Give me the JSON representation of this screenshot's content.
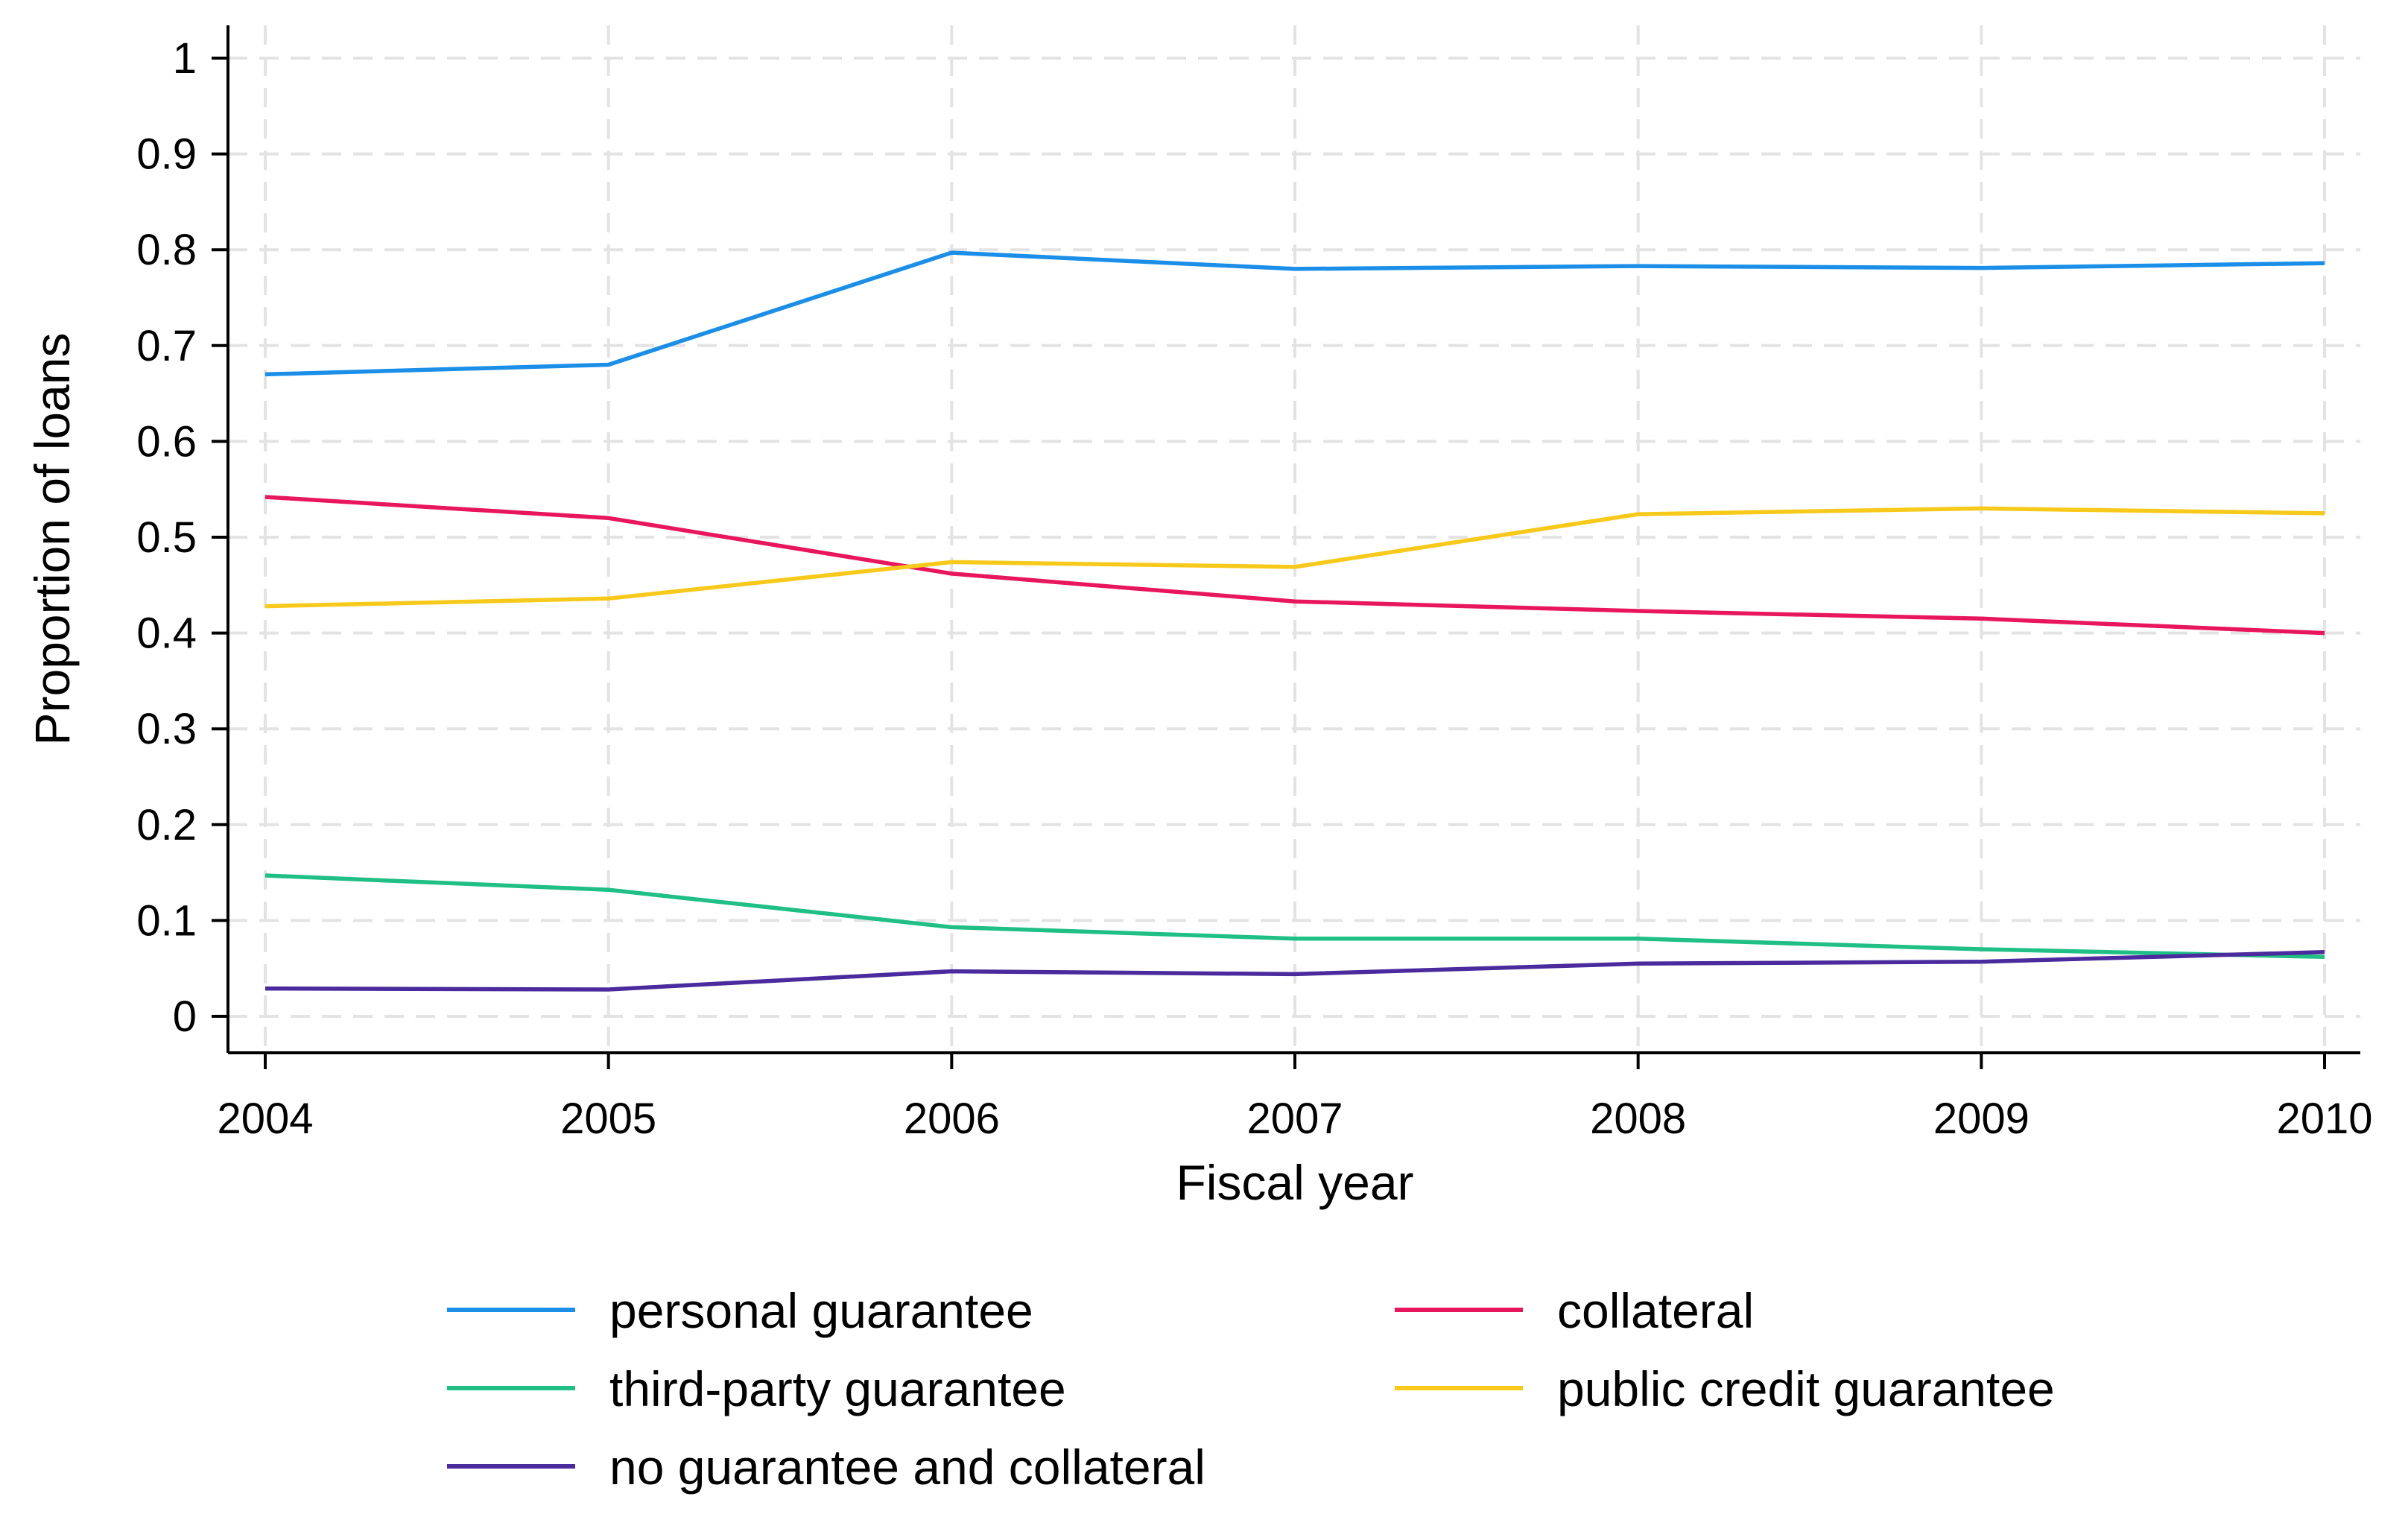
{
  "chart_data": {
    "type": "line",
    "title": "",
    "xlabel": "Fiscal year",
    "ylabel": "Proportion of loans",
    "x": [
      2004,
      2005,
      2006,
      2007,
      2008,
      2009,
      2010
    ],
    "x_tick_labels": [
      "2004",
      "2005",
      "2006",
      "2007",
      "2008",
      "2009",
      "2010"
    ],
    "xlim": [
      2004,
      2010
    ],
    "ylim": [
      0,
      1
    ],
    "y_ticks": [
      0,
      0.1,
      0.2,
      0.3,
      0.4,
      0.5,
      0.6,
      0.7,
      0.8,
      0.9,
      1
    ],
    "y_tick_labels": [
      "0",
      "0.1",
      "0.2",
      "0.3",
      "0.4",
      "0.5",
      "0.6",
      "0.7",
      "0.8",
      "0.9",
      "1"
    ],
    "grid": true,
    "legend_position": "bottom",
    "series": [
      {
        "name": "personal guarantee",
        "color": "#1b8fe8",
        "values": [
          0.67,
          0.68,
          0.797,
          0.78,
          0.783,
          0.781,
          0.786
        ]
      },
      {
        "name": "collateral",
        "color": "#e8175d",
        "values": [
          0.542,
          0.52,
          0.462,
          0.433,
          0.423,
          0.415,
          0.4
        ]
      },
      {
        "name": "third-party guarantee",
        "color": "#1fbf85",
        "values": [
          0.147,
          0.132,
          0.093,
          0.081,
          0.081,
          0.07,
          0.062
        ]
      },
      {
        "name": "public credit guarantee",
        "color": "#f7c91b",
        "values": [
          0.428,
          0.436,
          0.474,
          0.469,
          0.524,
          0.53,
          0.525
        ]
      },
      {
        "name": "no guarantee and collateral",
        "color": "#4a2a9c",
        "values": [
          0.029,
          0.028,
          0.047,
          0.044,
          0.055,
          0.057,
          0.067
        ]
      }
    ]
  }
}
